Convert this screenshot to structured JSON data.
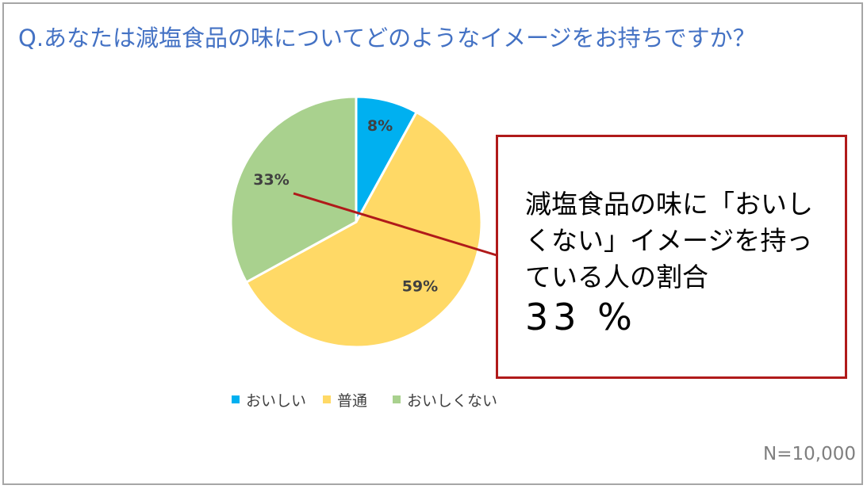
{
  "title": "Q.あなたは減塩食品の味についてどのようなイメージをお持ちですか？",
  "colors": {
    "oishii": "#00b0f0",
    "futsu": "#ffd966",
    "oishikunai": "#a9d18e",
    "accent": "#b01a1a",
    "title": "#4472c4"
  },
  "chart_data": {
    "type": "pie",
    "categories": [
      "おいしい",
      "普通",
      "おいしくない"
    ],
    "values": [
      8,
      59,
      33
    ],
    "data_labels": [
      "8%",
      "59%",
      "33%"
    ],
    "legend": "bottom"
  },
  "legend": {
    "items": [
      {
        "label": "おいしい"
      },
      {
        "label": "普通"
      },
      {
        "label": "おいしくない"
      }
    ]
  },
  "callout": {
    "text": "減塩食品の味に「おいしくない」イメージを持っている人の割合",
    "value": "33 %"
  },
  "sample_size": "N=10,000"
}
